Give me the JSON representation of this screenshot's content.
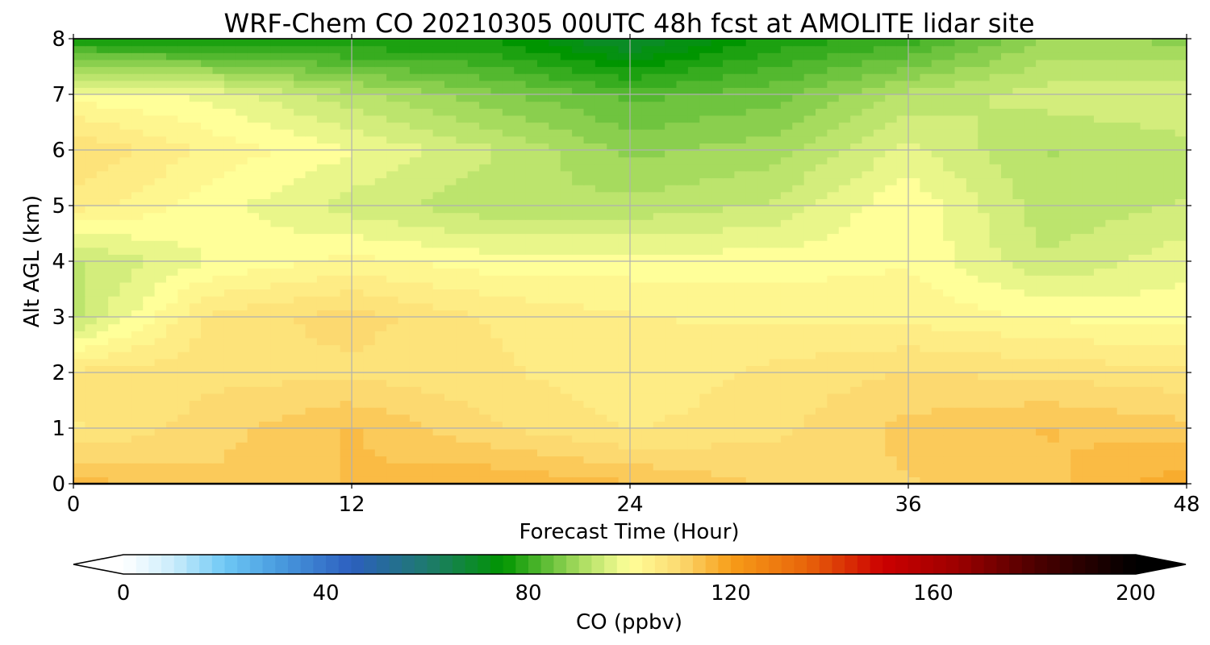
{
  "chart_data": {
    "type": "heatmap",
    "title": "WRF-Chem CO  20210305 00UTC 48h fcst at AMOLITE lidar site",
    "xlabel": "Forecast Time (Hour)",
    "ylabel": "Alt AGL (km)",
    "xlim": [
      0,
      48
    ],
    "ylim": [
      0,
      8
    ],
    "x_ticks": [
      0,
      12,
      24,
      36,
      48
    ],
    "y_ticks": [
      0,
      1,
      2,
      3,
      4,
      5,
      6,
      7,
      8
    ],
    "grid": true,
    "x": [
      0,
      6,
      12,
      18,
      24,
      30,
      36,
      42,
      48
    ],
    "y": [
      0,
      1,
      2,
      3,
      4,
      5,
      6,
      7,
      8
    ],
    "z": [
      [
        115,
        112,
        114,
        116,
        114,
        111,
        111,
        113,
        118
      ],
      [
        106,
        110,
        114,
        109,
        106,
        108,
        112,
        114,
        112
      ],
      [
        107,
        108,
        108,
        107,
        104,
        107,
        109,
        108,
        107
      ],
      [
        93,
        107,
        110,
        106,
        104,
        103,
        103,
        101,
        100
      ],
      [
        93,
        99,
        102,
        100,
        100,
        100,
        101,
        94,
        98
      ],
      [
        105,
        100,
        95,
        92,
        92,
        94,
        101,
        92,
        94
      ],
      [
        109,
        103,
        99,
        94,
        88,
        90,
        97,
        91,
        93
      ],
      [
        100,
        98,
        92,
        87,
        83,
        85,
        92,
        95,
        96
      ],
      [
        77,
        77,
        76,
        76,
        68,
        77,
        80,
        89,
        88
      ]
    ],
    "colorbar": {
      "label": "CO  (ppbv)",
      "ticks": [
        0,
        40,
        80,
        120,
        160,
        200
      ],
      "range": [
        0,
        200
      ],
      "extend": "both",
      "stops": [
        [
          0,
          "#ffffff"
        ],
        [
          10,
          "#c9ecfb"
        ],
        [
          20,
          "#6fc8f5"
        ],
        [
          30,
          "#4a9ee0"
        ],
        [
          45,
          "#2c5fbf"
        ],
        [
          60,
          "#1e7a6e"
        ],
        [
          75,
          "#009500"
        ],
        [
          90,
          "#a6db5e"
        ],
        [
          100,
          "#ffff99"
        ],
        [
          110,
          "#fcd970"
        ],
        [
          120,
          "#f79d18"
        ],
        [
          135,
          "#e8640a"
        ],
        [
          150,
          "#cc0000"
        ],
        [
          165,
          "#9c0000"
        ],
        [
          180,
          "#4d0000"
        ],
        [
          200,
          "#000000"
        ]
      ]
    }
  }
}
